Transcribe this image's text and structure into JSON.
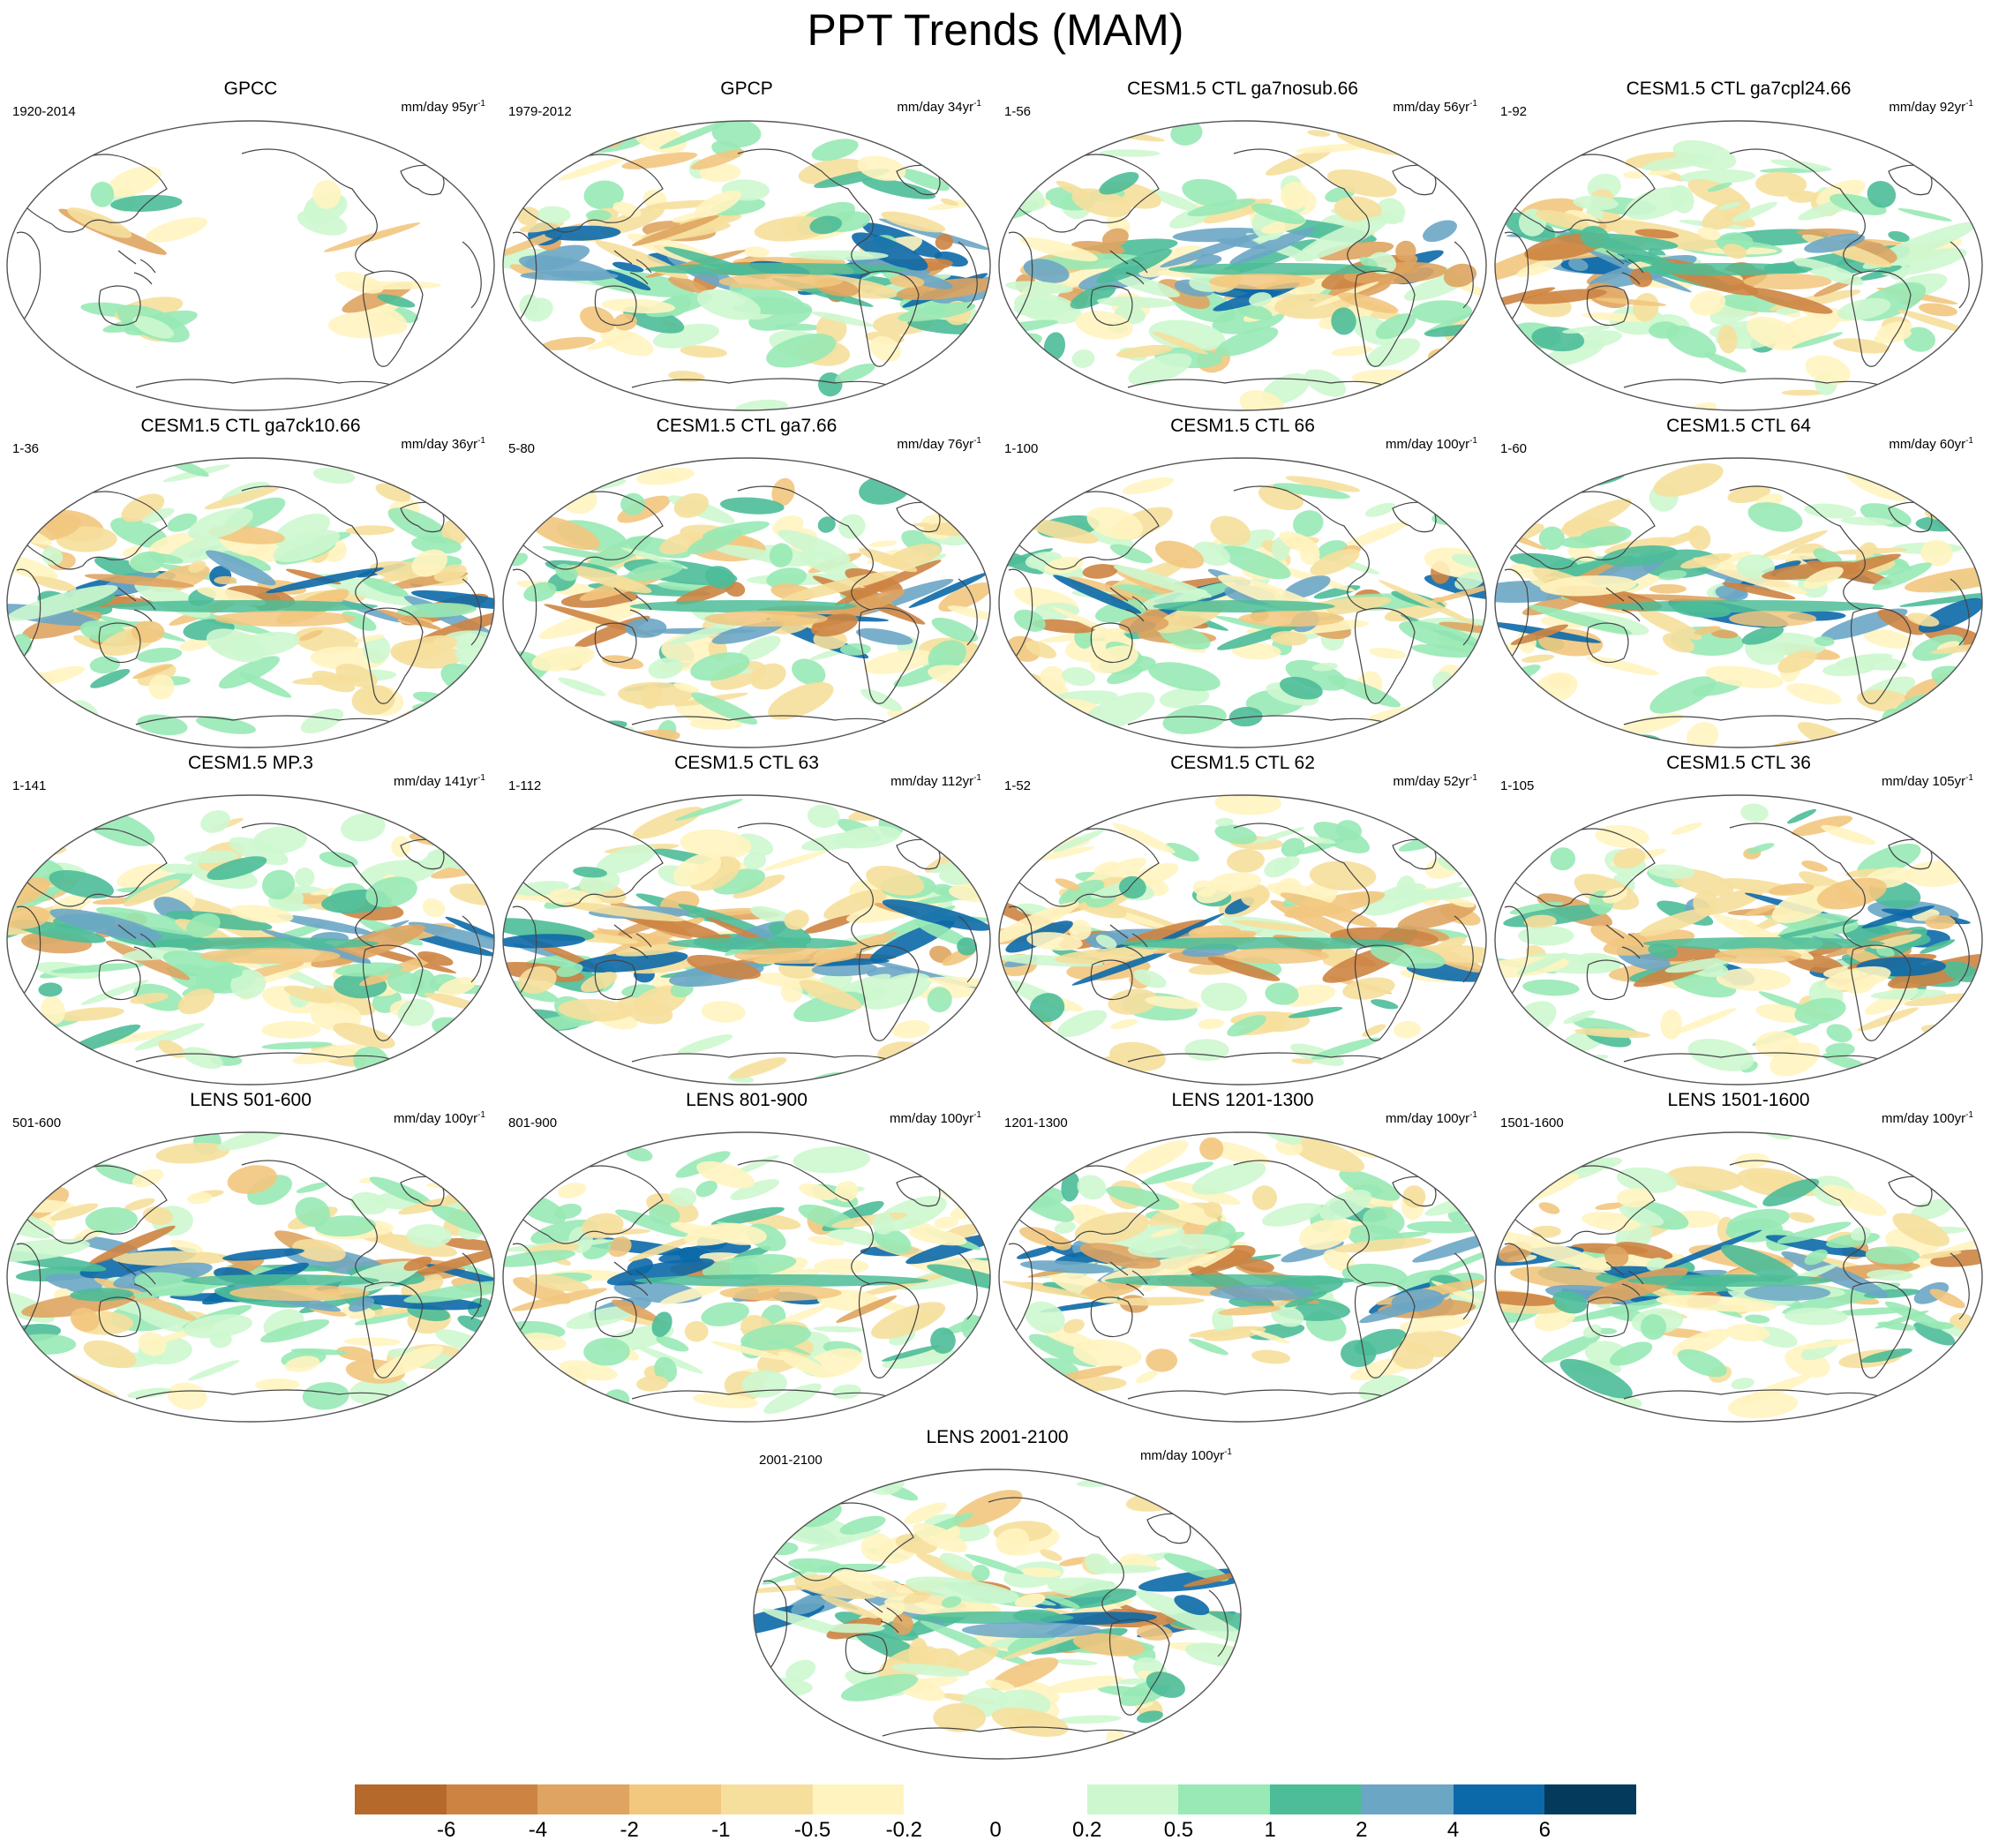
{
  "title": "PPT Trends (MAM)",
  "panels": [
    {
      "title": "GPCC",
      "left": "1920-2014",
      "unit": "mm/day 95yr",
      "sup": "-1"
    },
    {
      "title": "GPCP",
      "left": "1979-2012",
      "unit": "mm/day 34yr",
      "sup": "-1"
    },
    {
      "title": "CESM1.5 CTL ga7nosub.66",
      "left": "1-56",
      "unit": "mm/day 56yr",
      "sup": "-1"
    },
    {
      "title": "CESM1.5 CTL ga7cpl24.66",
      "left": "1-92",
      "unit": "mm/day 92yr",
      "sup": "-1"
    },
    {
      "title": "CESM1.5 CTL ga7ck10.66",
      "left": "1-36",
      "unit": "mm/day 36yr",
      "sup": "-1"
    },
    {
      "title": "CESM1.5 CTL ga7.66",
      "left": "5-80",
      "unit": "mm/day 76yr",
      "sup": "-1"
    },
    {
      "title": "CESM1.5 CTL 66",
      "left": "1-100",
      "unit": "mm/day 100yr",
      "sup": "-1"
    },
    {
      "title": "CESM1.5 CTL 64",
      "left": "1-60",
      "unit": "mm/day 60yr",
      "sup": "-1"
    },
    {
      "title": "CESM1.5 MP.3",
      "left": "1-141",
      "unit": "mm/day 141yr",
      "sup": "-1"
    },
    {
      "title": "CESM1.5 CTL 63",
      "left": "1-112",
      "unit": "mm/day 112yr",
      "sup": "-1"
    },
    {
      "title": "CESM1.5 CTL 62",
      "left": "1-52",
      "unit": "mm/day 52yr",
      "sup": "-1"
    },
    {
      "title": "CESM1.5 CTL 36",
      "left": "1-105",
      "unit": "mm/day 105yr",
      "sup": "-1"
    },
    {
      "title": "LENS 501-600",
      "left": "501-600",
      "unit": "mm/day 100yr",
      "sup": "-1"
    },
    {
      "title": "LENS 801-900",
      "left": "801-900",
      "unit": "mm/day 100yr",
      "sup": "-1"
    },
    {
      "title": "LENS 1201-1300",
      "left": "1201-1300",
      "unit": "mm/day 100yr",
      "sup": "-1"
    },
    {
      "title": "LENS 1501-1600",
      "left": "1501-1600",
      "unit": "mm/day 100yr",
      "sup": "-1"
    },
    {
      "title": "LENS 2001-2100",
      "left": "2001-2100",
      "unit": "mm/day 100yr",
      "sup": "-1"
    }
  ],
  "colorbar": {
    "labels": [
      "-6",
      "-4",
      "-2",
      "-1",
      "-0.5",
      "-0.2",
      "0",
      "0.2",
      "0.5",
      "1",
      "2",
      "4",
      "6"
    ],
    "colors": [
      "#b5692a",
      "#cd8443",
      "#dfa461",
      "#f2c77e",
      "#f6df9c",
      "#fff4c0",
      "#ffffff",
      "#ffffff",
      "#cdf7cf",
      "#98e9b5",
      "#4cbd98",
      "#6ba6c5",
      "#0c69a9",
      "#043b5c"
    ]
  }
}
